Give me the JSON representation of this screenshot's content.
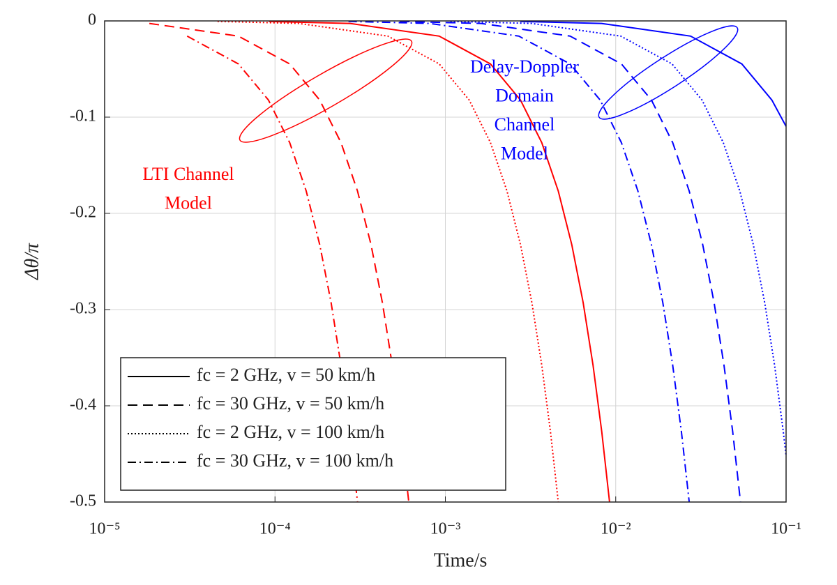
{
  "chart_data": {
    "type": "line",
    "xlabel": "Time/s",
    "ylabel": "Δθ/π",
    "xscale": "log",
    "xlim": [
      1e-05,
      0.1
    ],
    "ylim": [
      -0.5,
      0
    ],
    "xticks": [
      {
        "value": 1e-05,
        "label": "10⁻⁵"
      },
      {
        "value": 0.0001,
        "label": "10⁻⁴"
      },
      {
        "value": 0.001,
        "label": "10⁻³"
      },
      {
        "value": 0.01,
        "label": "10⁻²"
      },
      {
        "value": 0.1,
        "label": "10⁻¹"
      }
    ],
    "yticks": [
      0,
      -0.1,
      -0.2,
      -0.3,
      -0.4,
      -0.5
    ],
    "grid": true,
    "legend_loc": "lower left",
    "series": [
      {
        "name": "fc = 2 GHz, v = 50 km/h",
        "color": "#ff0000",
        "linestyle": "solid",
        "x": [
          9.2e-05,
          0.000276,
          0.00092,
          0.00184,
          0.00276,
          0.00368,
          0.0046,
          0.00552,
          0.00644,
          0.00736,
          0.00828,
          0.0092
        ],
        "values": [
          -0.0005,
          -0.0026,
          -0.0158,
          -0.0447,
          -0.0822,
          -0.1265,
          -0.1768,
          -0.2324,
          -0.2928,
          -0.3578,
          -0.4269,
          -0.5
        ]
      },
      {
        "name": "fc = 30 GHz, v = 50 km/h",
        "color": "#ff0000",
        "linestyle": "dashed",
        "x": [
          1.83e-05,
          6.1e-05,
          0.000122,
          0.000183,
          0.000244,
          0.000305,
          0.000366,
          0.000427,
          0.000488,
          0.000549,
          0.00061
        ],
        "values": [
          -0.0026,
          -0.0158,
          -0.0447,
          -0.0822,
          -0.1265,
          -0.1768,
          -0.2324,
          -0.2928,
          -0.3578,
          -0.4269,
          -0.5
        ]
      },
      {
        "name": "fc = 2 GHz, v = 100 km/h",
        "color": "#ff0000",
        "linestyle": "dotted",
        "x": [
          4.6e-05,
          0.000138,
          0.00046,
          0.00092,
          0.00138,
          0.00184,
          0.0023,
          0.00276,
          0.00322,
          0.00368,
          0.00414,
          0.0046
        ],
        "values": [
          -0.0005,
          -0.0026,
          -0.0158,
          -0.0447,
          -0.0822,
          -0.1265,
          -0.1768,
          -0.2324,
          -0.2928,
          -0.3578,
          -0.4269,
          -0.5
        ]
      },
      {
        "name": "fc = 30 GHz, v = 100 km/h",
        "color": "#ff0000",
        "linestyle": "dashdot",
        "x": [
          3.05e-05,
          6.1e-05,
          9.15e-05,
          0.000122,
          0.0001525,
          0.000183,
          0.0002135,
          0.000244,
          0.0002745,
          0.000305
        ],
        "values": [
          -0.0158,
          -0.0447,
          -0.0822,
          -0.1265,
          -0.1768,
          -0.2324,
          -0.2928,
          -0.3578,
          -0.4269,
          -0.5
        ]
      },
      {
        "color": "#0000ff",
        "linestyle": "solid",
        "x": [
          0.00275,
          0.00825,
          0.0275,
          0.055,
          0.0825,
          0.1
        ],
        "values": [
          -0.0005,
          -0.0026,
          -0.0158,
          -0.0447,
          -0.0822,
          -0.1096
        ]
      },
      {
        "color": "#0000ff",
        "linestyle": "dashed",
        "x": [
          0.00054,
          0.00162,
          0.0054,
          0.0108,
          0.0162,
          0.0216,
          0.027,
          0.0324,
          0.0378,
          0.0432,
          0.0486,
          0.054
        ],
        "values": [
          -0.0005,
          -0.0026,
          -0.0158,
          -0.0447,
          -0.0822,
          -0.1265,
          -0.1768,
          -0.2324,
          -0.2928,
          -0.3578,
          -0.4269,
          -0.5
        ]
      },
      {
        "color": "#0000ff",
        "linestyle": "dotted",
        "x": [
          0.00107,
          0.00321,
          0.0107,
          0.0214,
          0.0321,
          0.0428,
          0.0535,
          0.0642,
          0.0749,
          0.0856,
          0.0963,
          0.1
        ],
        "values": [
          -0.0005,
          -0.0026,
          -0.0158,
          -0.0447,
          -0.0822,
          -0.1265,
          -0.1768,
          -0.2324,
          -0.2928,
          -0.3578,
          -0.4269,
          -0.4518
        ]
      },
      {
        "color": "#0000ff",
        "linestyle": "dashdot",
        "x": [
          0.00027,
          0.00081,
          0.0027,
          0.0054,
          0.0081,
          0.0108,
          0.0135,
          0.0162,
          0.0189,
          0.0216,
          0.0243,
          0.027
        ],
        "values": [
          -0.0005,
          -0.0026,
          -0.0158,
          -0.0447,
          -0.0822,
          -0.1265,
          -0.1768,
          -0.2324,
          -0.2928,
          -0.3578,
          -0.4269,
          -0.5
        ]
      }
    ],
    "annotations": [
      {
        "lines": [
          "LTI Channel",
          "Model"
        ],
        "color": "#ff0000"
      },
      {
        "lines": [
          "Delay-Doppler",
          "Domain",
          "Channel",
          "Model"
        ],
        "color": "#0000ff"
      }
    ]
  }
}
